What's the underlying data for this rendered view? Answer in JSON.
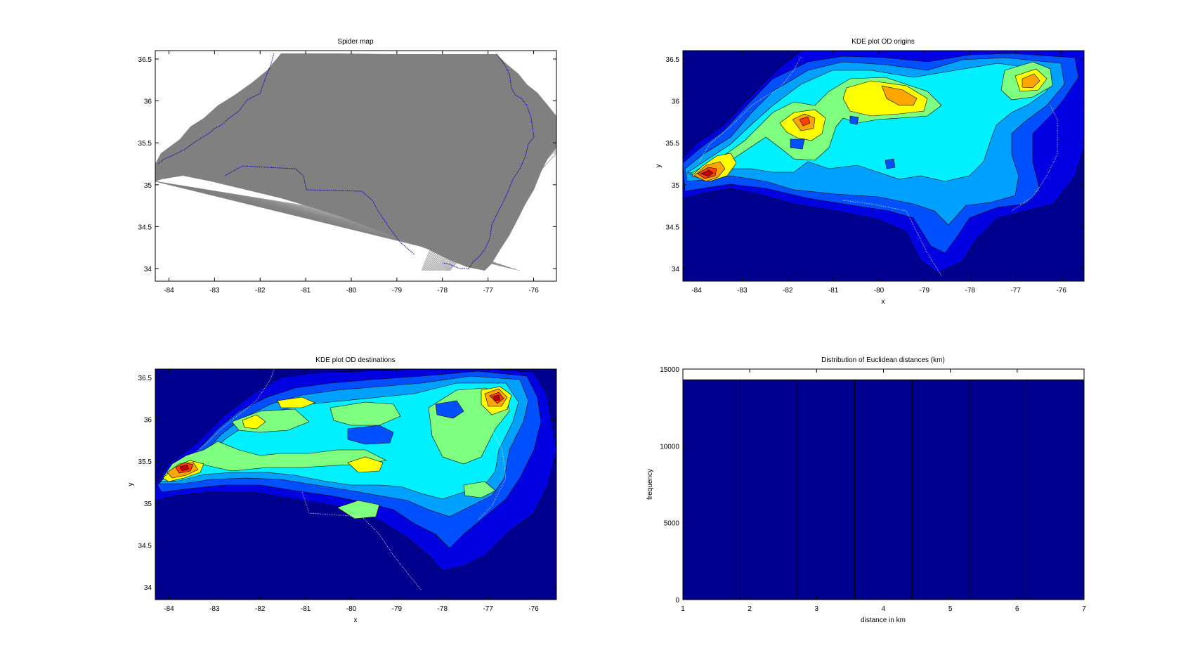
{
  "figure": {
    "background": "#ffffff"
  },
  "panels": {
    "spider": {
      "title": "Spider map",
      "xlabel": "",
      "ylabel": ""
    },
    "kde_origins": {
      "title": "KDE plot OD origins",
      "xlabel": "x",
      "ylabel": "y"
    },
    "kde_destinations": {
      "title": "KDE plot OD destinations",
      "xlabel": "x",
      "ylabel": "y"
    },
    "histogram": {
      "title": "Distribution of Euclidean distances (km)",
      "xlabel": "distance in km",
      "ylabel": "frequency"
    }
  },
  "map_axes": {
    "xticks": [
      "-84",
      "-83",
      "-82",
      "-81",
      "-80",
      "-79",
      "-78",
      "-77",
      "-76"
    ],
    "yticks": [
      "36.5",
      "36",
      "35.5",
      "35",
      "34.5",
      "34"
    ]
  },
  "colors": {
    "spider_lines": "#808080",
    "boundary": "#0000cc",
    "kde_background": "#00008f",
    "kde_levels": [
      "#00008f",
      "#0000e0",
      "#0050ff",
      "#00a0ff",
      "#00f0ff",
      "#7fff7f",
      "#ffff00",
      "#ffa500",
      "#ff4000",
      "#c00000",
      "#800000"
    ]
  },
  "chart_data": [
    {
      "type": "line",
      "title": "Spider map",
      "xlim": [
        -84.3,
        -75.5
      ],
      "ylim": [
        33.85,
        36.6
      ],
      "description_series": "origin-destination lines across North Carolina"
    },
    {
      "type": "heatmap",
      "title": "KDE plot OD origins",
      "xlabel": "x",
      "ylabel": "y",
      "xlim": [
        -84.3,
        -75.5
      ],
      "ylim": [
        33.85,
        36.6
      ],
      "hotspots": [
        {
          "x": -83.9,
          "y": 35.1,
          "level": 10
        },
        {
          "x": -81.3,
          "y": 35.75,
          "level": 8
        },
        {
          "x": -79.6,
          "y": 36.1,
          "level": 7
        },
        {
          "x": -76.4,
          "y": 36.25,
          "level": 7
        }
      ]
    },
    {
      "type": "heatmap",
      "title": "KDE plot OD destinations",
      "xlabel": "x",
      "ylabel": "y",
      "xlim": [
        -84.3,
        -75.5
      ],
      "ylim": [
        33.85,
        36.6
      ],
      "hotspots": [
        {
          "x": -83.4,
          "y": 35.35,
          "level": 10
        },
        {
          "x": -76.4,
          "y": 36.28,
          "level": 10
        },
        {
          "x": -79.5,
          "y": 35.4,
          "level": 6
        }
      ]
    },
    {
      "type": "bar",
      "title": "Distribution of Euclidean distances (km)",
      "xlabel": "distance in km",
      "ylabel": "frequency",
      "xlim": [
        1,
        7
      ],
      "ylim": [
        0,
        15000
      ],
      "xticks": [
        "1",
        "2",
        "3",
        "4",
        "5",
        "6",
        "7"
      ],
      "yticks": [
        "15000",
        "10000",
        "5000",
        "0"
      ],
      "bin_edges": [
        1,
        1.857,
        2.714,
        3.571,
        4.429,
        5.286,
        6.143,
        7
      ],
      "values": [
        14300,
        14300,
        14300,
        14300,
        14300,
        14300,
        14300
      ]
    }
  ]
}
